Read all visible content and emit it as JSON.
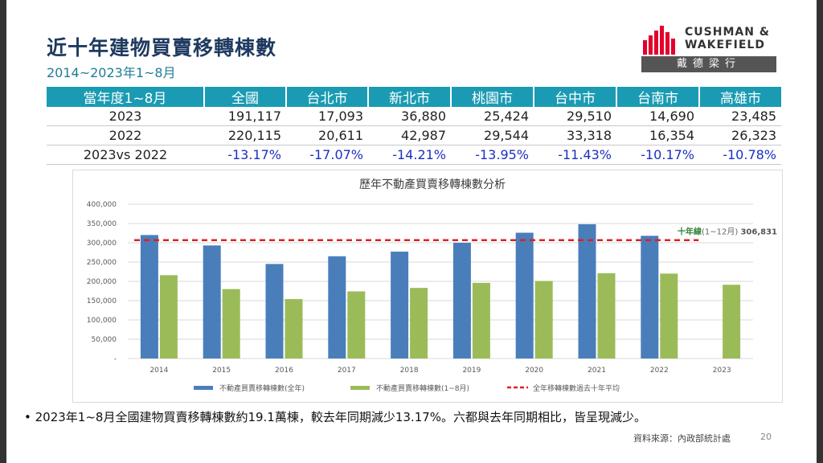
{
  "header": {
    "title": "近十年建物買賣移轉棟數",
    "subtitle": "2014~2023年1~8月"
  },
  "logo": {
    "line1": "CUSHMAN &",
    "line2": "WAKEFIELD",
    "band": "戴德梁行",
    "brand_color": "#e4002b"
  },
  "table": {
    "headers": [
      "當年度1~8月",
      "全國",
      "台北市",
      "新北市",
      "桃園市",
      "台中市",
      "台南市",
      "高雄市"
    ],
    "rows": [
      [
        "2023",
        "191,117",
        "17,093",
        "36,880",
        "25,424",
        "29,510",
        "14,690",
        "23,485"
      ],
      [
        "2022",
        "220,115",
        "20,611",
        "42,987",
        "29,544",
        "33,318",
        "16,354",
        "26,323"
      ],
      [
        "2023vs 2022",
        "-13.17%",
        "-17.07%",
        "-14.21%",
        "-13.95%",
        "-11.43%",
        "-10.17%",
        "-10.78%"
      ]
    ]
  },
  "chart_data": {
    "type": "bar",
    "title": "歷年不動產買賣移轉棟數分析",
    "categories": [
      "2014",
      "2015",
      "2016",
      "2017",
      "2018",
      "2019",
      "2020",
      "2021",
      "2022",
      "2023"
    ],
    "series": [
      {
        "name": "不動產買賣移轉棟數(全年)",
        "color": "#4a7ebb",
        "values": [
          320000,
          293000,
          245000,
          265000,
          277000,
          300000,
          326000,
          348000,
          318000,
          null
        ]
      },
      {
        "name": "不動產買賣移轉棟數(1~8月)",
        "color": "#9bbb59",
        "values": [
          216000,
          180000,
          154000,
          174000,
          183000,
          196000,
          201000,
          221000,
          220115,
          191117
        ]
      }
    ],
    "reference_line": {
      "name": "全年移轉棟數過去十年平均",
      "value": 306831,
      "label_main": "十年線",
      "label_paren": "(1~12月)",
      "label_value": "306,831",
      "color": "#e02020"
    },
    "ylim": [
      0,
      400000
    ],
    "yticks": [
      "-",
      "50,000",
      "100,000",
      "150,000",
      "200,000",
      "250,000",
      "300,000",
      "350,000",
      "400,000"
    ],
    "grid": true,
    "legend_position": "bottom"
  },
  "footer": {
    "bullet": "2023年1~8月全國建物買賣移轉棟數約19.1萬棟，較去年同期減少13.17%。六都與去年同期相比，皆呈現減少。",
    "source": "資料來源：內政部統計處",
    "page": "20"
  }
}
